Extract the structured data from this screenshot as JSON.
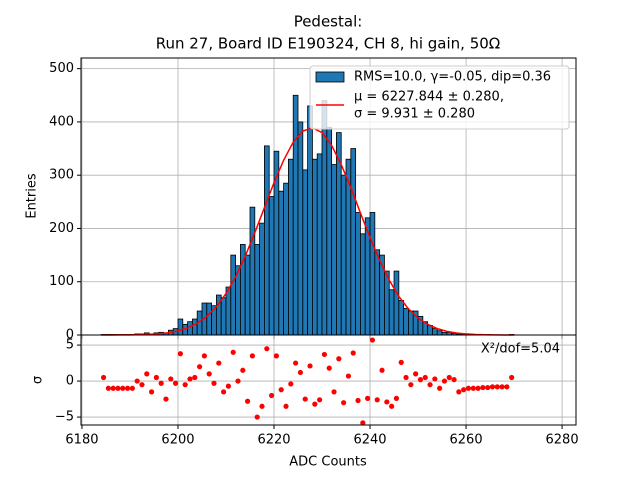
{
  "chart_data": [
    {
      "type": "histogram",
      "title": "Pedestal:",
      "subtitle": "Run 27, Board ID E190324, CH 8, hi gain, 50Ω",
      "ylabel": "Entries",
      "bins": [
        6184,
        6185,
        6186,
        6187,
        6188,
        6189,
        6190,
        6191,
        6192,
        6193,
        6194,
        6195,
        6196,
        6197,
        6198,
        6199,
        6200,
        6201,
        6202,
        6203,
        6204,
        6205,
        6206,
        6207,
        6208,
        6209,
        6210,
        6211,
        6212,
        6213,
        6214,
        6215,
        6216,
        6217,
        6218,
        6219,
        6220,
        6221,
        6222,
        6223,
        6224,
        6225,
        6226,
        6227,
        6228,
        6229,
        6230,
        6231,
        6232,
        6233,
        6234,
        6235,
        6236,
        6237,
        6238,
        6239,
        6240,
        6241,
        6242,
        6243,
        6244,
        6245,
        6246,
        6247,
        6248,
        6249,
        6250,
        6251,
        6252,
        6253,
        6254,
        6255,
        6256,
        6257,
        6258,
        6259,
        6260,
        6261,
        6262,
        6263,
        6264,
        6265,
        6266,
        6267,
        6268,
        6269,
        6270
      ],
      "series": [
        {
          "name": "RMS=10.0, γ=-0.05, dip=0.36",
          "color": "#1f77b4",
          "values": [
            1,
            1,
            1,
            1,
            1,
            1,
            1,
            2,
            2,
            4,
            2,
            4,
            5,
            4,
            9,
            12,
            30,
            20,
            25,
            30,
            45,
            60,
            60,
            55,
            75,
            70,
            90,
            150,
            130,
            170,
            150,
            240,
            170,
            210,
            355,
            260,
            345,
            270,
            285,
            330,
            450,
            400,
            310,
            430,
            330,
            340,
            440,
            390,
            320,
            380,
            300,
            330,
            350,
            230,
            190,
            220,
            230,
            160,
            150,
            120,
            85,
            120,
            65,
            50,
            45,
            45,
            35,
            25,
            18,
            12,
            8,
            5,
            5,
            3,
            2,
            1,
            1,
            1,
            1,
            1,
            1,
            0,
            0,
            0,
            0,
            1
          ]
        },
        {
          "type": "line",
          "name": "μ = 6227.844 ± 0.280,\nσ = 9.931 ± 0.280",
          "color": "#ff0000",
          "x": [
            6184,
            6186,
            6188,
            6190,
            6192,
            6194,
            6196,
            6198,
            6200,
            6202,
            6204,
            6206,
            6208,
            6210,
            6212,
            6214,
            6216,
            6218,
            6220,
            6222,
            6224,
            6226,
            6228,
            6230,
            6232,
            6234,
            6236,
            6238,
            6240,
            6242,
            6244,
            6246,
            6248,
            6250,
            6252,
            6254,
            6256,
            6258,
            6260,
            6262,
            6264,
            6266,
            6268,
            6270
          ],
          "values": [
            0.02,
            0.05,
            0.13,
            0.28,
            0.59,
            1.2,
            2.3,
            4.3,
            7.7,
            13.2,
            22.1,
            34.9,
            53.2,
            77.8,
            109,
            148,
            192,
            239,
            286,
            328,
            362,
            383,
            389,
            380,
            356,
            320,
            277,
            229,
            183,
            140,
            103,
            72.4,
            49.1,
            31.9,
            20.0,
            12.0,
            6.9,
            3.8,
            2.0,
            1.0,
            0.51,
            0.24,
            0.11,
            0.05
          ]
        }
      ],
      "xlim": [
        6179.8,
        6282.9
      ],
      "ylim": [
        0,
        520
      ],
      "yticks": [
        0,
        100,
        200,
        300,
        400,
        500
      ],
      "grid": true,
      "legend": "upper right"
    },
    {
      "type": "scatter",
      "xlabel": "ADC Counts",
      "ylabel": "σ",
      "annotation": "X²/dof=5.04",
      "x": [
        6184.5,
        6185.5,
        6186.5,
        6187.5,
        6188.5,
        6189.5,
        6190.5,
        6191.5,
        6192.5,
        6193.5,
        6194.5,
        6195.5,
        6196.5,
        6197.5,
        6198.5,
        6199.5,
        6200.5,
        6201.5,
        6202.5,
        6203.5,
        6204.5,
        6205.5,
        6206.5,
        6207.5,
        6208.5,
        6209.5,
        6210.5,
        6211.5,
        6212.5,
        6213.5,
        6214.5,
        6215.5,
        6216.5,
        6217.5,
        6218.5,
        6219.5,
        6220.5,
        6221.5,
        6222.5,
        6223.5,
        6224.5,
        6225.5,
        6226.5,
        6227.5,
        6228.5,
        6229.5,
        6230.5,
        6231.5,
        6232.5,
        6233.5,
        6234.5,
        6235.5,
        6236.5,
        6237.5,
        6238.5,
        6239.5,
        6240.5,
        6241.5,
        6242.5,
        6243.5,
        6244.5,
        6245.5,
        6246.5,
        6247.5,
        6248.5,
        6249.5,
        6250.5,
        6251.5,
        6252.5,
        6253.5,
        6254.5,
        6255.5,
        6256.5,
        6257.5,
        6258.5,
        6259.5,
        6260.5,
        6261.5,
        6262.5,
        6263.5,
        6264.5,
        6265.5,
        6266.5,
        6267.5,
        6268.5,
        6269.5
      ],
      "series": [
        {
          "color": "#ff0000",
          "values": [
            0.5,
            -1,
            -1,
            -1,
            -1,
            -1,
            -1,
            0,
            -0.5,
            1,
            -1.5,
            0.5,
            -0.3,
            -2.5,
            0.3,
            -0.3,
            3.8,
            -0.5,
            0.3,
            0.5,
            2,
            3.5,
            1,
            -0.3,
            2.5,
            -1.5,
            -0.7,
            4,
            0,
            1.5,
            -2.8,
            3.5,
            -5,
            -3.5,
            4.5,
            -2,
            3.5,
            -1.2,
            -3.5,
            -0.4,
            2.5,
            1.2,
            -2.5,
            2.1,
            -3.2,
            -2.6,
            3.7,
            1.8,
            -1.5,
            3.1,
            -3,
            0.7,
            3.9,
            -2.7,
            -5.8,
            -2.4,
            5.7,
            -2.6,
            1.5,
            -2.9,
            -3.5,
            -2.4,
            2.6,
            0.5,
            -0.5,
            1,
            0.2,
            0.5,
            -0.5,
            0.3,
            -1,
            0,
            0.5,
            0.2,
            -1.5,
            -1.2,
            -1,
            -1,
            -1,
            -0.9,
            -0.9,
            -0.8,
            -0.8,
            -0.8,
            -0.8,
            0.5
          ]
        }
      ],
      "xlim": [
        6179.8,
        6282.9
      ],
      "ylim": [
        -6.1,
        6.4
      ],
      "xticks": [
        6180,
        6200,
        6220,
        6240,
        6260,
        6280
      ],
      "yticks": [
        {
          "value": -5,
          "label": "−5"
        },
        0,
        5
      ],
      "grid": true
    }
  ]
}
